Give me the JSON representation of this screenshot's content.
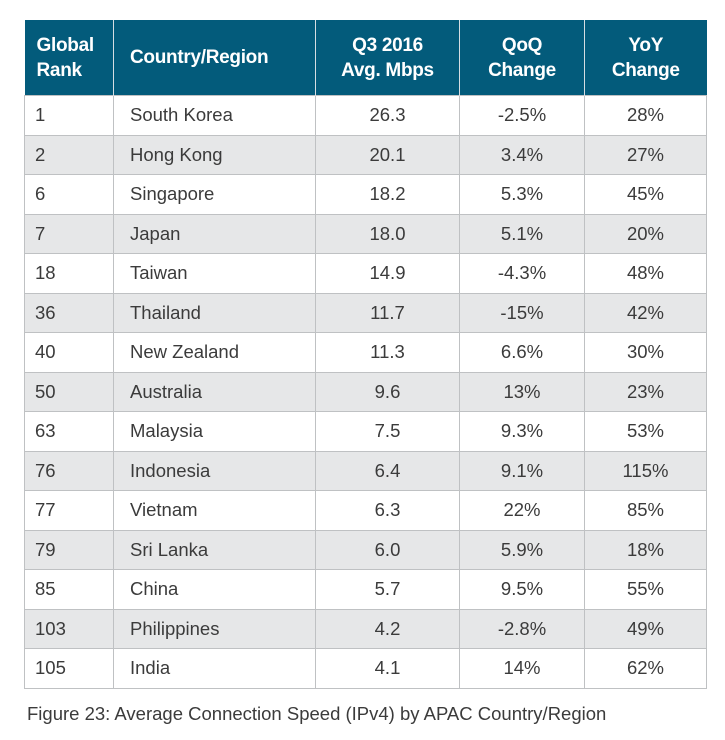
{
  "table": {
    "colors": {
      "header_bg": "#035b7b",
      "header_text": "#ffffff",
      "alt_row_bg": "#e6e7e8"
    },
    "headers": [
      [
        "Global",
        "Rank"
      ],
      [
        "Country/Region"
      ],
      [
        "Q3 2016",
        "Avg. Mbps"
      ],
      [
        "QoQ",
        "Change"
      ],
      [
        "YoY",
        "Change"
      ]
    ],
    "rows": [
      [
        "1",
        "South Korea",
        "26.3",
        "-2.5%",
        "28%"
      ],
      [
        "2",
        "Hong Kong",
        "20.1",
        "3.4%",
        "27%"
      ],
      [
        "6",
        "Singapore",
        "18.2",
        "5.3%",
        "45%"
      ],
      [
        "7",
        "Japan",
        "18.0",
        "5.1%",
        "20%"
      ],
      [
        "18",
        "Taiwan",
        "14.9",
        "-4.3%",
        "48%"
      ],
      [
        "36",
        "Thailand",
        "11.7",
        "-15%",
        "42%"
      ],
      [
        "40",
        "New Zealand",
        "11.3",
        "6.6%",
        "30%"
      ],
      [
        "50",
        "Australia",
        "9.6",
        "13%",
        "23%"
      ],
      [
        "63",
        "Malaysia",
        "7.5",
        "9.3%",
        "53%"
      ],
      [
        "76",
        "Indonesia",
        "6.4",
        "9.1%",
        "115%"
      ],
      [
        "77",
        "Vietnam",
        "6.3",
        "22%",
        "85%"
      ],
      [
        "79",
        "Sri Lanka",
        "6.0",
        "5.9%",
        "18%"
      ],
      [
        "85",
        "China",
        "5.7",
        "9.5%",
        "55%"
      ],
      [
        "103",
        "Philippines",
        "4.2",
        "-2.8%",
        "49%"
      ],
      [
        "105",
        "India",
        "4.1",
        "14%",
        "62%"
      ]
    ]
  },
  "caption": "Figure 23: Average Connection Speed (IPv4) by APAC Country/Region"
}
